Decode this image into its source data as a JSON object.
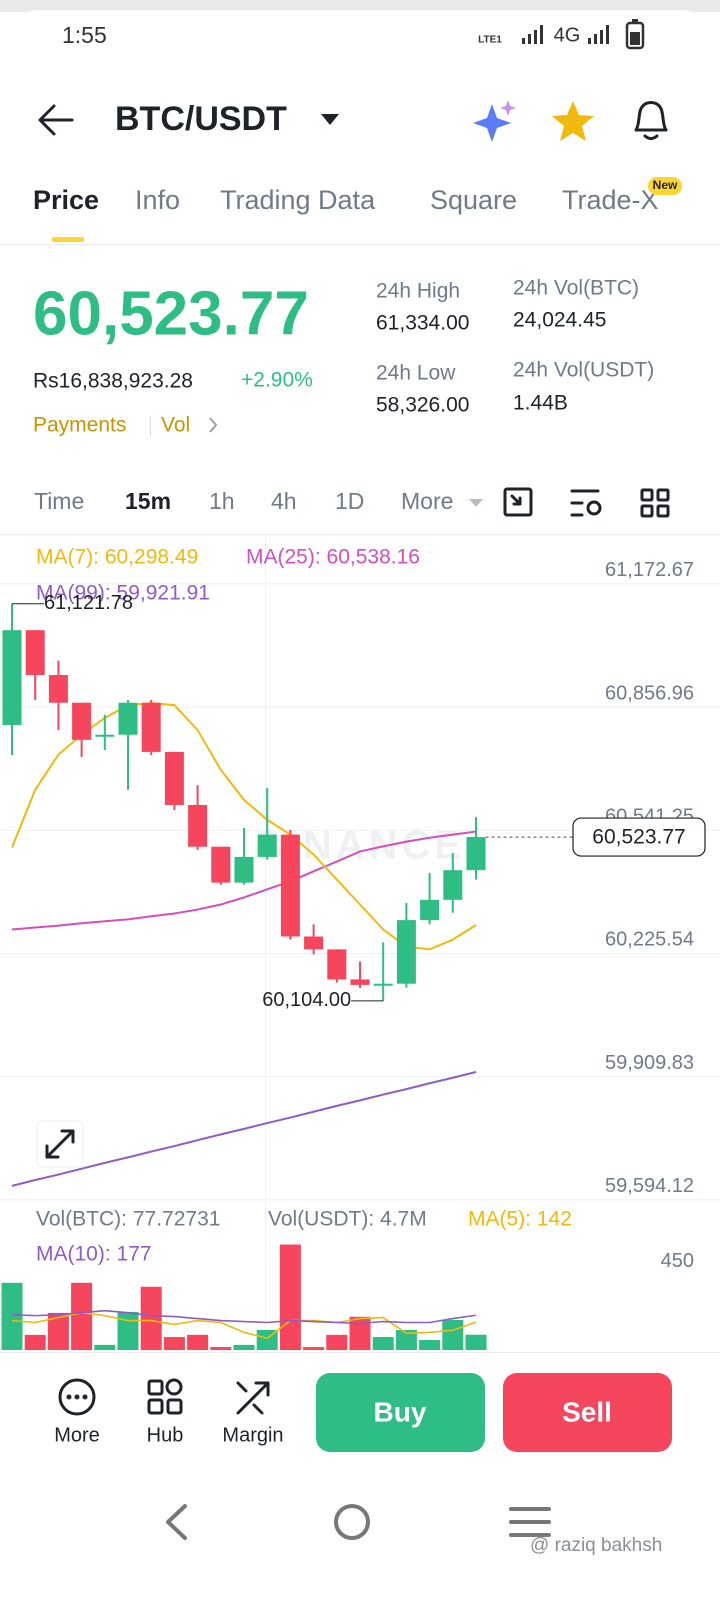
{
  "status_bar": {
    "time": "1:55",
    "lte": "LTE1",
    "network": "4G"
  },
  "header": {
    "pair": "BTC/USDT"
  },
  "tabs": {
    "items": [
      "Price",
      "Info",
      "Trading Data",
      "Square",
      "Trade-X"
    ],
    "badge": "New"
  },
  "ticker": {
    "last_price": "60,523.77",
    "fiat_price": "Rs16,838,923.28",
    "change": "+2.90%",
    "links": [
      "Payments",
      "Vol"
    ]
  },
  "stats": [
    {
      "label": "24h High",
      "value": "61,334.00"
    },
    {
      "label": "24h Low",
      "value": "58,326.00"
    },
    {
      "label": "24h Vol(BTC)",
      "value": "24,024.45"
    },
    {
      "label": "24h Vol(USDT)",
      "value": "1.44B"
    }
  ],
  "intervals": [
    "Time",
    "15m",
    "1h",
    "4h",
    "1D",
    "More"
  ],
  "chart_data": [
    {
      "type": "candlestick",
      "watermark": "BINANCE",
      "up_color": "#2ebd85",
      "down_color": "#f6465d",
      "open": [
        60811,
        61054,
        60939,
        60868,
        60783,
        60786,
        60868,
        60742,
        60606,
        60499,
        60407,
        60473,
        60530,
        60269,
        60236,
        60159,
        60143,
        60148,
        60311,
        60363,
        60439
      ],
      "high": [
        61121.78,
        61054,
        60976,
        60868,
        60837,
        60875,
        60875,
        60742,
        60657,
        60499,
        60547,
        60650,
        60542,
        60300,
        60236,
        60205,
        60254,
        60355,
        60432,
        60483,
        60575
      ],
      "low": [
        60734,
        60875,
        60798,
        60729,
        60747,
        60645,
        60734,
        60593,
        60491,
        60402,
        60402,
        60466,
        60261,
        60223,
        60151,
        60137,
        60104,
        60138,
        60300,
        60330,
        60415
      ],
      "close": [
        61054,
        60939,
        60868,
        60773,
        60786,
        60868,
        60742,
        60606,
        60499,
        60407,
        60473,
        60530,
        60269,
        60236,
        60159,
        60145,
        60148,
        60311,
        60363,
        60439,
        60523.77
      ],
      "series": [
        {
          "name": "MA(7): 60,298.49",
          "color": "#f0b90b",
          "values": [
            60497,
            60645,
            60735,
            60786,
            60829,
            60862,
            60867,
            60862,
            60798,
            60696,
            60619,
            60568,
            60530,
            60479,
            60415,
            60351,
            60287,
            60243,
            60236,
            60261,
            60298.49
          ]
        },
        {
          "name": "MA(25): 60,538.16",
          "color": "#d24fbf",
          "values": [
            60287,
            60292,
            60297,
            60303,
            60308,
            60313,
            60321,
            60328,
            60338,
            60351,
            60369,
            60390,
            60410,
            60436,
            60461,
            60487,
            60500,
            60512,
            60522,
            60530,
            60538.16
          ]
        },
        {
          "name": "MA(99): 59,921.91",
          "color": "#8e5cc4",
          "values": [
            59630,
            59645,
            59659,
            59674,
            59689,
            59703,
            59718,
            59732,
            59747,
            59762,
            59776,
            59791,
            59805,
            59820,
            59835,
            59849,
            59864,
            59878,
            59893,
            59907,
            59921.91
          ]
        }
      ],
      "ylim": [
        59581,
        61285
      ],
      "yticks": [
        {
          "value": 61172.67,
          "label": "61,172.67"
        },
        {
          "value": 60856.96,
          "label": "60,856.96"
        },
        {
          "value": 60541.25,
          "label": "60,541.25"
        },
        {
          "value": 60225.54,
          "label": "60,225.54"
        },
        {
          "value": 59909.83,
          "label": "59,909.83"
        },
        {
          "value": 59594.12,
          "label": "59,594.12"
        }
      ],
      "grid": true,
      "annotations": [
        {
          "value": 61121.78,
          "label": "61,121.78"
        },
        {
          "value": 60104,
          "label": "60,104.00"
        }
      ],
      "last_price": {
        "value": 60523.77,
        "label": "60,523.77"
      }
    },
    {
      "type": "bar",
      "legend": [
        "Vol(BTC): 77.72731",
        "Vol(USDT): 4.7M"
      ],
      "values": [
        342,
        77,
        189,
        342,
        26,
        194,
        322,
        66,
        77,
        15,
        26,
        102,
        537,
        15,
        77,
        169,
        66,
        102,
        51,
        153,
        77.72731
      ],
      "series": [
        {
          "name": "MA(5): 142",
          "color": "#f0b90b",
          "values": [
            150,
            140,
            165,
            190,
            175,
            150,
            150,
            130,
            150,
            140,
            90,
            60,
            150,
            150,
            140,
            160,
            165,
            85,
            90,
            100,
            142
          ]
        },
        {
          "name": "MA(10): 177",
          "color": "#8e5cc4",
          "values": [
            180,
            175,
            180,
            190,
            200,
            190,
            175,
            170,
            160,
            150,
            145,
            140,
            150,
            145,
            140,
            135,
            145,
            140,
            140,
            160,
            177
          ]
        }
      ],
      "ylim": [
        0,
        560
      ],
      "yticks": [
        450
      ]
    }
  ],
  "actions": [
    "More",
    "Hub",
    "Margin"
  ],
  "buttons": {
    "buy": "Buy",
    "sell": "Sell"
  },
  "watermark": "@ raziq bakhsh"
}
